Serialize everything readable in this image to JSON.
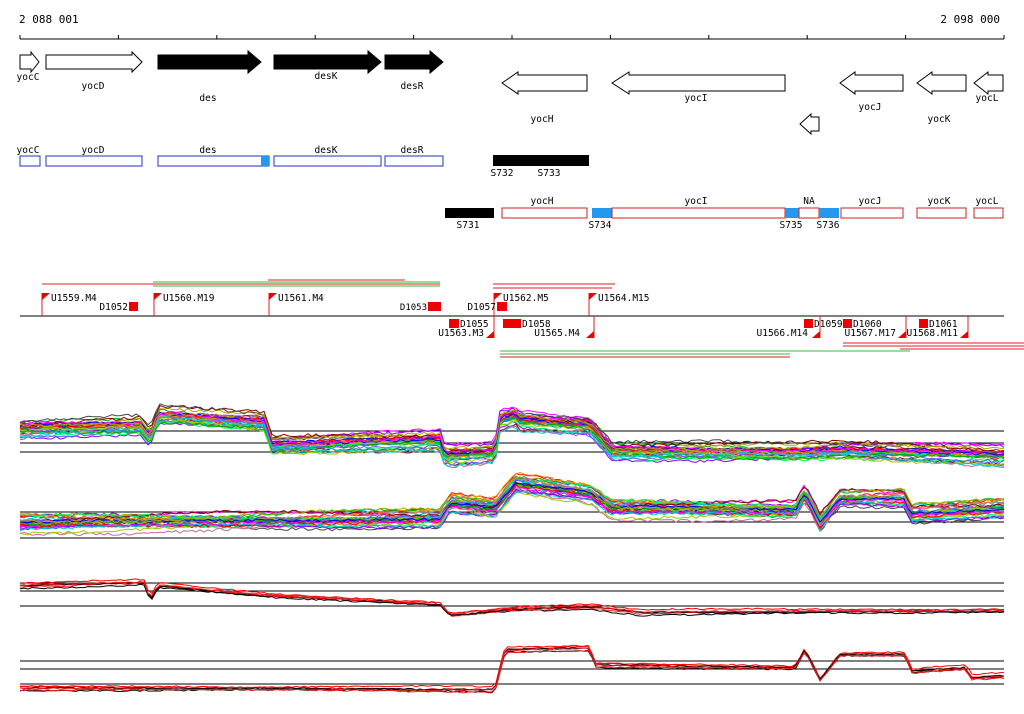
{
  "ruler": {
    "start_label": "2 088 001",
    "end_label": "2 098 000"
  },
  "genes": [
    {
      "label": "yocC",
      "filled": false,
      "dir": "right"
    },
    {
      "label": "yocD",
      "filled": false,
      "dir": "right"
    },
    {
      "label": "des",
      "filled": true,
      "dir": "right"
    },
    {
      "label": "desK",
      "filled": true,
      "dir": "right"
    },
    {
      "label": "desR",
      "filled": true,
      "dir": "right"
    },
    {
      "label": "yocH",
      "filled": false,
      "dir": "left"
    },
    {
      "label": "yocI",
      "filled": false,
      "dir": "left"
    },
    {
      "label": "",
      "filled": false,
      "dir": "left"
    },
    {
      "label": "yocJ",
      "filled": false,
      "dir": "left"
    },
    {
      "label": "yocK",
      "filled": false,
      "dir": "left"
    },
    {
      "label": "yocL",
      "filled": false,
      "dir": "left"
    }
  ],
  "transcripts_fwd": [
    {
      "label": "yocC"
    },
    {
      "label": "yocD"
    },
    {
      "label": "des"
    },
    {
      "label": "desK"
    },
    {
      "label": "desR"
    }
  ],
  "fwd_segments": [
    {
      "label": "S732"
    },
    {
      "label": "S733"
    }
  ],
  "transcripts_rev": [
    {
      "label": "yocH"
    },
    {
      "label": "yocI"
    },
    {
      "label": "NA"
    },
    {
      "label": "yocJ"
    },
    {
      "label": "yocK"
    },
    {
      "label": "yocL"
    }
  ],
  "rev_segments": [
    {
      "label": "S731"
    },
    {
      "label": "S734"
    },
    {
      "label": "S735"
    },
    {
      "label": "S736"
    }
  ],
  "upshifts_top": [
    {
      "label": "U1559.M4"
    },
    {
      "label": "U1560.M19"
    },
    {
      "label": "U1561.M4"
    },
    {
      "label": "U1562.M5"
    },
    {
      "label": "U1564.M15"
    }
  ],
  "downshifts_top": [
    {
      "label": "D1052"
    },
    {
      "label": "D1053"
    },
    {
      "label": "D1057"
    }
  ],
  "upshifts_bottom": [
    {
      "label": "U1563.M3"
    },
    {
      "label": "U1565.M4"
    },
    {
      "label": "U1566.M14"
    },
    {
      "label": "U1567.M17"
    },
    {
      "label": "U1568.M11"
    }
  ],
  "downshifts_bottom": [
    {
      "label": "D1055"
    },
    {
      "label": "D1058"
    },
    {
      "label": "D1059"
    },
    {
      "label": "D1060"
    },
    {
      "label": "D1061"
    }
  ],
  "colors": {
    "gene_outline": "#000000",
    "forward_box": "#2233bb",
    "reverse_box": "#cc2222",
    "highlight": "#2299ee",
    "marker": "#ee0000",
    "green_bar": "#33bb33",
    "red_bar": "#dd2222"
  }
}
